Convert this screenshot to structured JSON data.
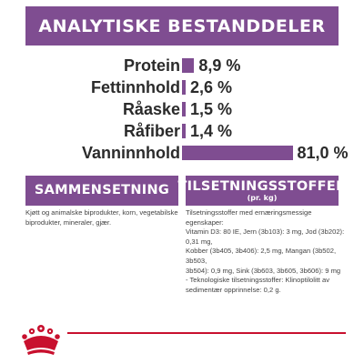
{
  "header": {
    "title": "ANALYTISKE BESTANDDELER"
  },
  "colors": {
    "purple": "#7f4d91",
    "red": "#c8102e"
  },
  "chart_data": {
    "type": "bar",
    "categories": [
      "Protein",
      "Fettinnhold",
      "Råaske",
      "Råfiber",
      "Vanninnhold"
    ],
    "values": [
      8.9,
      2.6,
      1.5,
      1.4,
      81.0
    ],
    "value_labels": [
      "8,9 %",
      "2,6 %",
      "1,5 %",
      "1,4 %",
      "81,0 %"
    ],
    "unit": "%",
    "orientation": "horizontal",
    "xlim": [
      0,
      100
    ]
  },
  "sammensetning": {
    "title": "SAMMENSETNING",
    "text": "Kjøtt og animalske biprodukter, korn, vegetabilske biprodukter, mineraler, gjær."
  },
  "tilsetningsstoffer": {
    "title": "TILSETNINGSSTOFFER",
    "subtitle": "(pr. kg)",
    "lines": [
      "Tilsetningsstoffer med ernæringsmessige egenskaper:",
      "Vitamin D3: 80 IE, Jern (3b103): 3 mg, Jod (3b202): 0,31 mg,",
      "Kobber (3b405, 3b406): 2,5 mg, Mangan (3b502, 3b503,",
      "3b504): 0,9 mg, Sink (3b603, 3b605, 3b606): 9 mg",
      "- Teknologiske tilsetningsstoffer: Klinoptilolitt av",
      "sedimentær opprinnelse: 0,2 g."
    ]
  },
  "logo": {
    "icon": "crown-icon"
  }
}
